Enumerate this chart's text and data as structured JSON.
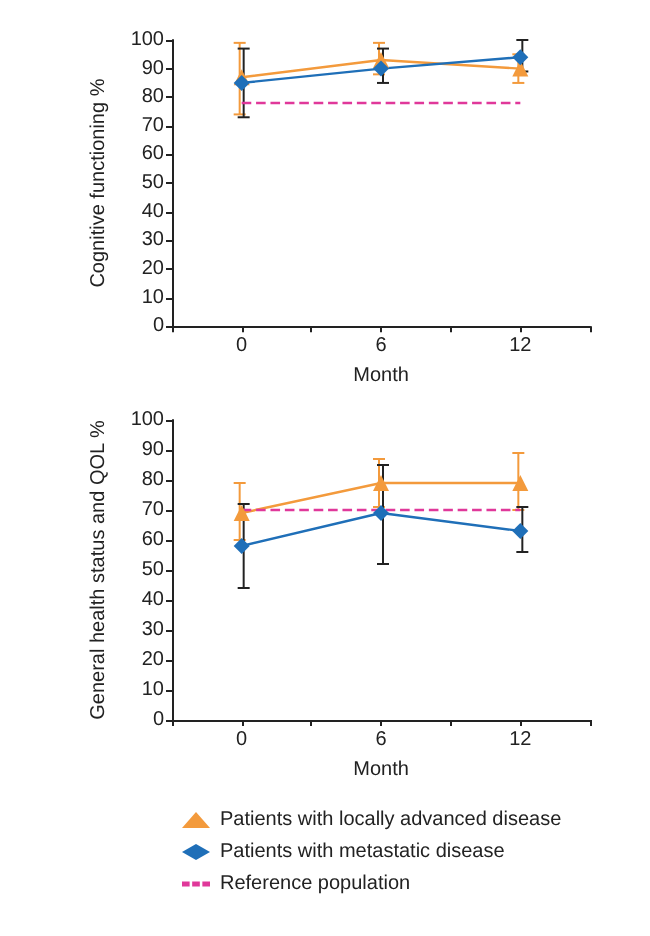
{
  "chart_data": [
    {
      "type": "line",
      "xlabel": "Month",
      "ylabel": "Cognitive functioning %",
      "xlim": [
        -3,
        15
      ],
      "xticks": [
        {
          "value": -3,
          "label": null
        },
        0,
        {
          "value": 3,
          "label": null
        },
        6,
        {
          "value": 9,
          "label": null
        },
        12,
        {
          "value": 15,
          "label": null
        }
      ],
      "ylim": [
        0,
        100
      ],
      "yticks": [
        0,
        10,
        20,
        30,
        40,
        50,
        60,
        70,
        80,
        90,
        100
      ],
      "grid": false,
      "legend": false,
      "series": [
        {
          "color": "#f39a3c",
          "marker": "triangle",
          "x": [
            0,
            6,
            12
          ],
          "values": [
            87,
            93,
            90
          ],
          "errors": [
            [
              74,
              99
            ],
            [
              88,
              99
            ],
            [
              85,
              95
            ]
          ]
        },
        {
          "color": "#1f6fb8",
          "marker": "diamond",
          "x": [
            0,
            6,
            12
          ],
          "values": [
            85,
            90,
            94
          ],
          "errors": [
            [
              73,
              97
            ],
            [
              85,
              97
            ],
            [
              89,
              100
            ]
          ]
        },
        {
          "color": "#e0389a",
          "marker": "none",
          "line_style": "dashed",
          "x": [
            0,
            12
          ],
          "values": [
            78,
            78
          ]
        }
      ]
    },
    {
      "type": "line",
      "xlabel": "Month",
      "ylabel": "General health status and QOL %",
      "xlim": [
        -3,
        15
      ],
      "xticks": [
        {
          "value": -3,
          "label": null
        },
        0,
        {
          "value": 3,
          "label": null
        },
        6,
        {
          "value": 9,
          "label": null
        },
        12,
        {
          "value": 15,
          "label": null
        }
      ],
      "ylim": [
        0,
        100
      ],
      "yticks": [
        0,
        10,
        20,
        30,
        40,
        50,
        60,
        70,
        80,
        90,
        100
      ],
      "grid": false,
      "legend": "bottom",
      "series": [
        {
          "name": "Patients with locally advanced disease",
          "color": "#f39a3c",
          "marker": "triangle",
          "x": [
            0,
            6,
            12
          ],
          "values": [
            69,
            79,
            79
          ],
          "errors": [
            [
              60,
              79
            ],
            [
              71,
              87
            ],
            [
              70,
              89
            ]
          ]
        },
        {
          "name": "Patients with metastatic disease",
          "color": "#1f6fb8",
          "marker": "diamond",
          "x": [
            0,
            6,
            12
          ],
          "values": [
            58,
            69,
            63
          ],
          "errors": [
            [
              44,
              72
            ],
            [
              52,
              85
            ],
            [
              56,
              71
            ]
          ]
        },
        {
          "name": "Reference population",
          "color": "#e0389a",
          "marker": "none",
          "line_style": "dashed",
          "x": [
            0,
            12
          ],
          "values": [
            70,
            70
          ]
        }
      ]
    }
  ]
}
